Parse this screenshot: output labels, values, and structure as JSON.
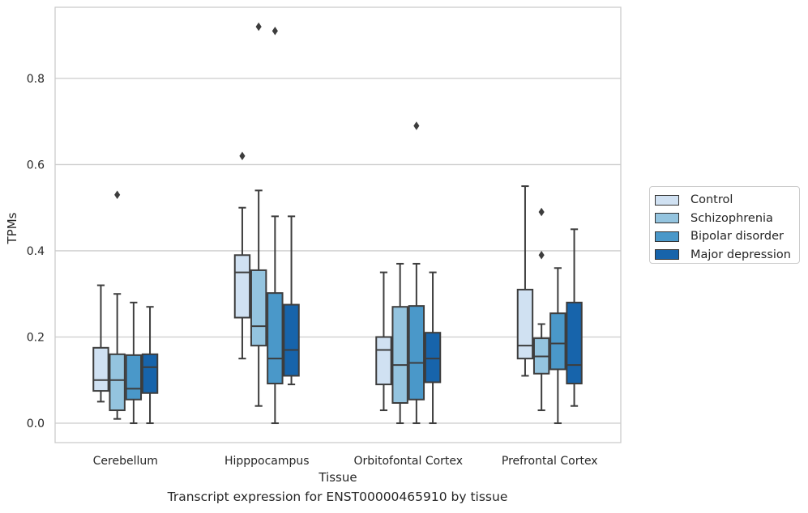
{
  "chart_data": {
    "type": "box",
    "caption": "Transcript expression for ENST00000465910 by tissue",
    "xlabel": "Tissue",
    "ylabel": "TPMs",
    "categories": [
      "Cerebellum",
      "Hipppocampus",
      "Orbitofontal Cortex",
      "Prefrontal Cortex"
    ],
    "ylim": [
      -0.045,
      0.965
    ],
    "yticks": [
      "0.0",
      "0.2",
      "0.4",
      "0.6",
      "0.8"
    ],
    "yticks_values": [
      0.0,
      0.2,
      0.4,
      0.6,
      0.8
    ],
    "grid": true,
    "legend_position": "right",
    "series": [
      {
        "name": "Control",
        "color": "#d0e1f2",
        "boxes": [
          {
            "whisker_low": 0.05,
            "q1": 0.075,
            "median": 0.1,
            "q3": 0.175,
            "whisker_high": 0.32,
            "outliers": []
          },
          {
            "whisker_low": 0.15,
            "q1": 0.245,
            "median": 0.35,
            "q3": 0.39,
            "whisker_high": 0.5,
            "outliers": [
              0.62
            ]
          },
          {
            "whisker_low": 0.03,
            "q1": 0.09,
            "median": 0.17,
            "q3": 0.2,
            "whisker_high": 0.35,
            "outliers": []
          },
          {
            "whisker_low": 0.11,
            "q1": 0.15,
            "median": 0.18,
            "q3": 0.31,
            "whisker_high": 0.55,
            "outliers": []
          }
        ]
      },
      {
        "name": "Schizophrenia",
        "color": "#94c4df",
        "boxes": [
          {
            "whisker_low": 0.01,
            "q1": 0.03,
            "median": 0.1,
            "q3": 0.16,
            "whisker_high": 0.3,
            "outliers": [
              0.53
            ]
          },
          {
            "whisker_low": 0.04,
            "q1": 0.18,
            "median": 0.225,
            "q3": 0.355,
            "whisker_high": 0.54,
            "outliers": [
              0.92
            ]
          },
          {
            "whisker_low": 0.0,
            "q1": 0.047,
            "median": 0.135,
            "q3": 0.27,
            "whisker_high": 0.37,
            "outliers": []
          },
          {
            "whisker_low": 0.03,
            "q1": 0.115,
            "median": 0.155,
            "q3": 0.197,
            "whisker_high": 0.23,
            "outliers": [
              0.39,
              0.49
            ]
          }
        ]
      },
      {
        "name": "Bipolar disorder",
        "color": "#4a98c9",
        "boxes": [
          {
            "whisker_low": 0.0,
            "q1": 0.055,
            "median": 0.08,
            "q3": 0.158,
            "whisker_high": 0.28,
            "outliers": []
          },
          {
            "whisker_low": 0.0,
            "q1": 0.092,
            "median": 0.15,
            "q3": 0.302,
            "whisker_high": 0.48,
            "outliers": [
              0.91
            ]
          },
          {
            "whisker_low": 0.0,
            "q1": 0.055,
            "median": 0.14,
            "q3": 0.272,
            "whisker_high": 0.37,
            "outliers": [
              0.69
            ]
          },
          {
            "whisker_low": 0.0,
            "q1": 0.125,
            "median": 0.185,
            "q3": 0.255,
            "whisker_high": 0.36,
            "outliers": []
          }
        ]
      },
      {
        "name": "Major depression",
        "color": "#1764ab",
        "boxes": [
          {
            "whisker_low": 0.0,
            "q1": 0.07,
            "median": 0.13,
            "q3": 0.16,
            "whisker_high": 0.27,
            "outliers": []
          },
          {
            "whisker_low": 0.09,
            "q1": 0.11,
            "median": 0.17,
            "q3": 0.275,
            "whisker_high": 0.48,
            "outliers": []
          },
          {
            "whisker_low": 0.0,
            "q1": 0.095,
            "median": 0.15,
            "q3": 0.21,
            "whisker_high": 0.35,
            "outliers": []
          },
          {
            "whisker_low": 0.04,
            "q1": 0.092,
            "median": 0.135,
            "q3": 0.28,
            "whisker_high": 0.45,
            "outliers": []
          }
        ]
      }
    ]
  }
}
